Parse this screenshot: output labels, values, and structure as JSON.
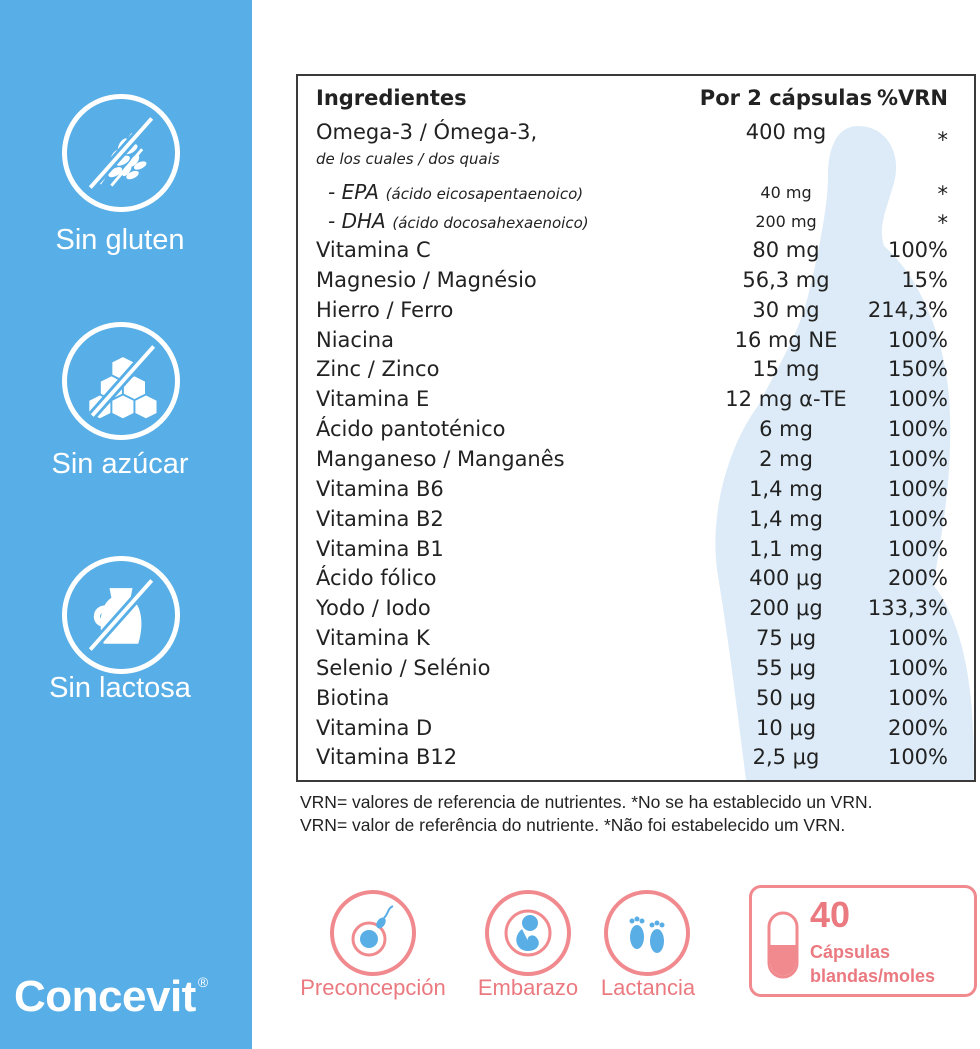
{
  "sidebar": {
    "badges": [
      {
        "label": "Sin gluten",
        "icon": "wheat-crossed-icon"
      },
      {
        "label": "Sin azúcar",
        "icon": "sugar-cubes-crossed-icon"
      },
      {
        "label": "Sin lactosa",
        "icon": "milk-jug-crossed-icon"
      }
    ],
    "brand": "Concevit",
    "brand_mark": "®"
  },
  "table": {
    "header": {
      "ingredient": "Ingredientes",
      "amount": "Por 2 cápsulas",
      "vrn": "%VRN"
    },
    "omega": {
      "name": "Omega-3 / Ómega-3,",
      "sub": "de los cuales / dos quais",
      "amount": "400 mg",
      "vrn": "*"
    },
    "epa": {
      "name": "- EPA",
      "detail": "(ácido eicosapentaenoico)",
      "amount": "40 mg",
      "vrn": "*"
    },
    "dha": {
      "name": "- DHA",
      "detail": "(ácido docosahexaenoico)",
      "amount": "200 mg",
      "vrn": "*"
    },
    "rows": [
      {
        "name": "Vitamina C",
        "amount": "80 mg",
        "vrn": "100%"
      },
      {
        "name": "Magnesio / Magnésio",
        "amount": "56,3 mg",
        "vrn": "15%"
      },
      {
        "name": "Hierro / Ferro",
        "amount": "30 mg",
        "vrn": "214,3%"
      },
      {
        "name": "Niacina",
        "amount": "16 mg NE",
        "vrn": "100%"
      },
      {
        "name": "Zinc / Zinco",
        "amount": "15 mg",
        "vrn": "150%"
      },
      {
        "name": "Vitamina E",
        "amount": "12 mg α-TE",
        "vrn": "100%"
      },
      {
        "name": "Ácido pantoténico",
        "amount": "6 mg",
        "vrn": "100%"
      },
      {
        "name": "Manganeso / Manganês",
        "amount": "2 mg",
        "vrn": "100%"
      },
      {
        "name": "Vitamina B6",
        "amount": "1,4 mg",
        "vrn": "100%"
      },
      {
        "name": "Vitamina B2",
        "amount": "1,4 mg",
        "vrn": "100%"
      },
      {
        "name": "Vitamina B1",
        "amount": "1,1 mg",
        "vrn": "100%"
      },
      {
        "name": "Ácido fólico",
        "amount": "400 μg",
        "vrn": "200%"
      },
      {
        "name": "Yodo / Iodo",
        "amount": "200 μg",
        "vrn": "133,3%"
      },
      {
        "name": "Vitamina K",
        "amount": "75 μg",
        "vrn": "100%"
      },
      {
        "name": "Selenio / Selénio",
        "amount": "55 μg",
        "vrn": "100%"
      },
      {
        "name": "Biotina",
        "amount": "50 μg",
        "vrn": "100%"
      },
      {
        "name": "Vitamina D",
        "amount": "10 μg",
        "vrn": "200%"
      },
      {
        "name": "Vitamina B12",
        "amount": "2,5 μg",
        "vrn": "100%"
      }
    ]
  },
  "footnotes": [
    "VRN= valores de referencia de nutrientes. *No se ha establecido un VRN.",
    "VRN= valor de referência do nutriente. *Não foi estabelecido um VRN."
  ],
  "stages": [
    {
      "label": "Preconcepción",
      "icon": "sperm-egg-icon"
    },
    {
      "label": "Embarazo",
      "icon": "fetus-icon"
    },
    {
      "label": "Lactancia",
      "icon": "baby-feet-icon"
    }
  ],
  "capsules": {
    "count": "40",
    "line1": "Cápsulas",
    "line2": "blandas/moles",
    "icon": "capsule-icon"
  },
  "colors": {
    "sidebar": "#58aee6",
    "accent": "#f08a8e",
    "silhouette": "#dcebf7"
  }
}
